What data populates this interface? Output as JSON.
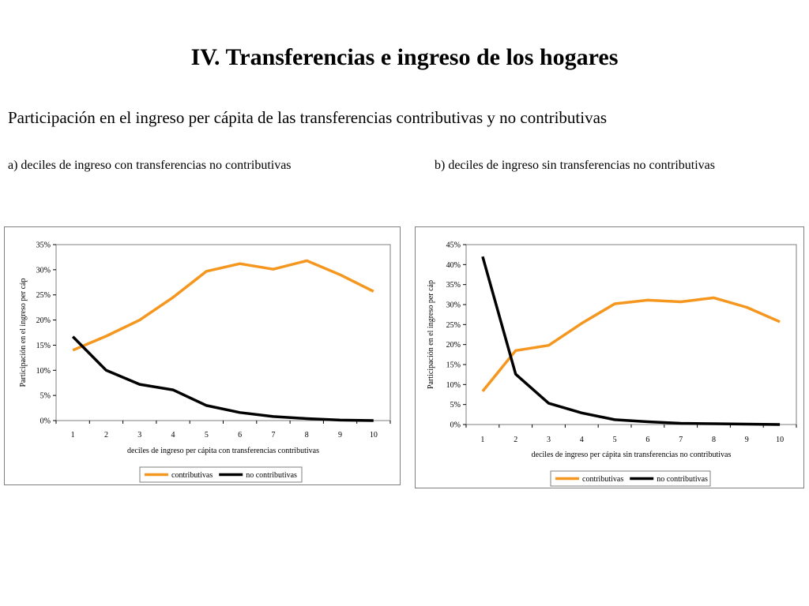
{
  "slide": {
    "title": "IV. Transferencias e ingreso de los hogares",
    "subtitle": "Participación en el ingreso per cápita de las transferencias contributivas y  no contributivas",
    "caption_a": "a)  deciles de ingreso con transferencias no contributivas",
    "caption_b": "b)  deciles de ingreso sin  transferencias no contributivas"
  },
  "colors": {
    "contributivas": "#f5961e",
    "no_contributivas": "#000000",
    "plot_border": "#7f7f7f",
    "frame_border": "#7f7f7f"
  },
  "chart_data": [
    {
      "type": "line",
      "categories": [
        "1",
        "2",
        "3",
        "4",
        "5",
        "6",
        "7",
        "8",
        "9",
        "10"
      ],
      "series": [
        {
          "name": "contributivas",
          "values": [
            14.0,
            16.8,
            20.0,
            24.5,
            29.7,
            31.2,
            30.1,
            31.8,
            29.0,
            25.7
          ]
        },
        {
          "name": "no contributivas",
          "values": [
            16.7,
            10.0,
            7.2,
            6.1,
            3.0,
            1.6,
            0.8,
            0.4,
            0.1,
            0.0
          ]
        }
      ],
      "xlabel": "deciles de ingreso per cápita con transferencias contributivas",
      "ylabel": "Participación en el ingreso per cáp",
      "ylim": [
        0,
        35
      ],
      "yticks": [
        "0%",
        "5%",
        "10%",
        "15%",
        "20%",
        "25%",
        "30%",
        "35%"
      ],
      "grid": false,
      "legend": "bottom-center"
    },
    {
      "type": "line",
      "categories": [
        "1",
        "2",
        "3",
        "4",
        "5",
        "6",
        "7",
        "8",
        "9",
        "10"
      ],
      "series": [
        {
          "name": "contributivas",
          "values": [
            8.3,
            18.5,
            19.8,
            25.3,
            30.2,
            31.1,
            30.7,
            31.7,
            29.3,
            25.7
          ]
        },
        {
          "name": "no contributivas",
          "values": [
            42.0,
            12.6,
            5.3,
            2.9,
            1.2,
            0.7,
            0.3,
            0.2,
            0.1,
            0.0
          ]
        }
      ],
      "xlabel": "deciles de ingreso per cápita sin transferencias no contributivas",
      "ylabel": "Participación en el ingreso per cáp",
      "ylim": [
        0,
        45
      ],
      "yticks": [
        "0%",
        "5%",
        "10%",
        "15%",
        "20%",
        "25%",
        "30%",
        "35%",
        "40%",
        "45%"
      ],
      "grid": false,
      "legend": "bottom-center"
    }
  ]
}
